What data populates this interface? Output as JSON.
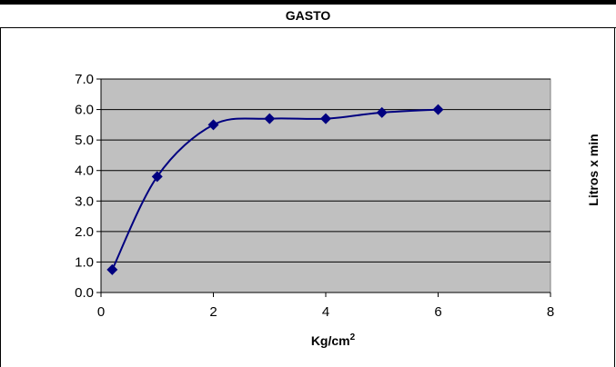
{
  "chart_data": {
    "type": "line",
    "title": "GASTO",
    "xlabel": "Kg/cm",
    "xlabel_sup": "2",
    "ylabel": "Litros x min",
    "x": [
      0.2,
      1,
      2,
      3,
      4,
      5,
      6
    ],
    "series": [
      {
        "values": [
          0.75,
          3.8,
          5.5,
          5.7,
          5.7,
          5.9,
          6.0
        ]
      }
    ],
    "xlim": [
      0,
      8
    ],
    "ylim": [
      0,
      7
    ],
    "xticks": [
      "0",
      "2",
      "4",
      "6",
      "8"
    ],
    "yticks": [
      "0.0",
      "1.0",
      "2.0",
      "3.0",
      "4.0",
      "5.0",
      "6.0",
      "7.0"
    ],
    "grid": "horizontal",
    "legend": "none",
    "colors": {
      "plot_bg": "#c0c0c0",
      "series": "#000080",
      "grid": "#000000"
    }
  }
}
